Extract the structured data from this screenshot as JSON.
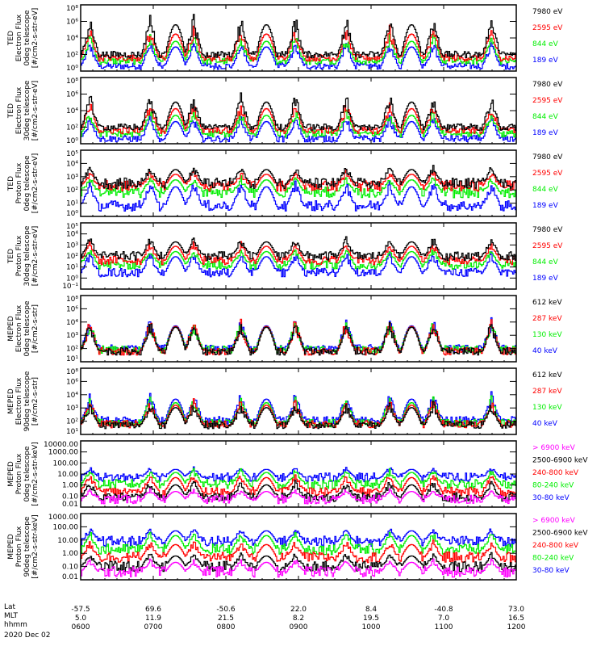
{
  "chart_data": [
    {
      "type": "line",
      "instrument": "TED",
      "ylabel": [
        "TED",
        "Electron Flux",
        "0deg telescope",
        "[#/cm2-s-str-eV]"
      ],
      "yscale": "log",
      "ylim": [
        1,
        100000000
      ],
      "yticks": [
        "10⁰",
        "10²",
        "10⁴",
        "10⁶",
        "10⁸"
      ],
      "legend": [
        {
          "label": "7980 eV",
          "color": "#000000"
        },
        {
          "label": "2595 eV",
          "color": "#ff0000"
        },
        {
          "label": "844 eV",
          "color": "#00ee00"
        },
        {
          "label": "189 eV",
          "color": "#0000ff"
        }
      ],
      "profile": {
        "base": [
          2,
          1.6,
          1.2,
          0.6
        ],
        "peak": [
          6.5,
          5.2,
          4.2,
          3.5
        ]
      }
    },
    {
      "type": "line",
      "instrument": "TED",
      "ylabel": [
        "TED",
        "Electron Flux",
        "30deg telescope",
        "[#/cm2-s-str-eV]"
      ],
      "yscale": "log",
      "ylim": [
        1,
        100000000
      ],
      "yticks": [
        "10⁰",
        "10²",
        "10⁴",
        "10⁶",
        "10⁸"
      ],
      "legend": [
        {
          "label": "7980 eV",
          "color": "#000000"
        },
        {
          "label": "2595 eV",
          "color": "#ff0000"
        },
        {
          "label": "844 eV",
          "color": "#00ee00"
        },
        {
          "label": "189 eV",
          "color": "#0000ff"
        }
      ],
      "profile": {
        "base": [
          2,
          1.6,
          1.2,
          0.6
        ],
        "peak": [
          5.8,
          4.9,
          4.0,
          3.2
        ]
      }
    },
    {
      "type": "line",
      "instrument": "TED",
      "ylabel": [
        "TED",
        "Proton Flux",
        "0deg telescope",
        "[#/cm2-s-str-eV]"
      ],
      "yscale": "log",
      "ylim": [
        1,
        100000
      ],
      "yticks": [
        "10⁰",
        "10¹",
        "10²",
        "10³",
        "10⁴",
        "10⁵"
      ],
      "legend": [
        {
          "label": "7980 eV",
          "color": "#000000"
        },
        {
          "label": "2595 eV",
          "color": "#ff0000"
        },
        {
          "label": "844 eV",
          "color": "#00ee00"
        },
        {
          "label": "189 eV",
          "color": "#0000ff"
        }
      ],
      "profile": {
        "base": [
          2.5,
          2.3,
          1.8,
          0.8
        ],
        "peak": [
          3.8,
          3.4,
          3.0,
          2.6
        ]
      }
    },
    {
      "type": "line",
      "instrument": "TED",
      "ylabel": [
        "TED",
        "Proton Flux",
        "30deg telescope",
        "[#/cm2-s-str-eV]"
      ],
      "yscale": "log",
      "ylim": [
        0.1,
        100000
      ],
      "yticks": [
        "10⁻¹",
        "10⁰",
        "10¹",
        "10²",
        "10³",
        "10⁴",
        "10⁵"
      ],
      "legend": [
        {
          "label": "7980 eV",
          "color": "#000000"
        },
        {
          "label": "2595 eV",
          "color": "#ff0000"
        },
        {
          "label": "844 eV",
          "color": "#00ee00"
        },
        {
          "label": "189 eV",
          "color": "#0000ff"
        }
      ],
      "profile": {
        "base": [
          2.0,
          1.6,
          1.2,
          0.5
        ],
        "peak": [
          3.6,
          3.2,
          2.7,
          2.3
        ]
      }
    },
    {
      "type": "line",
      "instrument": "MEPED",
      "ylabel": [
        "MEPED",
        "Electron Flux",
        "0deg telescope",
        "[#/cm2-s-str]"
      ],
      "yscale": "log",
      "ylim": [
        10,
        100000000
      ],
      "yticks": [
        "10¹",
        "10²",
        "10³",
        "10⁴",
        "10⁶",
        "10⁸"
      ],
      "legend": [
        {
          "label": "612 keV",
          "color": "#000000"
        },
        {
          "label": "287 keV",
          "color": "#ff0000"
        },
        {
          "label": "130 keV",
          "color": "#00ee00"
        },
        {
          "label": "40 keV",
          "color": "#0000ff"
        }
      ],
      "profile": {
        "base": [
          2.1,
          2.1,
          2.3,
          2.4
        ],
        "peak": [
          5.3,
          5.4,
          5.3,
          5.4
        ]
      }
    },
    {
      "type": "line",
      "instrument": "MEPED",
      "ylabel": [
        "MEPED",
        "Electron Flux",
        "90deg telescope",
        "[#/cm2-s-str]"
      ],
      "yscale": "log",
      "ylim": [
        10,
        100000000
      ],
      "yticks": [
        "10¹",
        "10²",
        "10³",
        "10⁴",
        "10⁶",
        "10⁸"
      ],
      "legend": [
        {
          "label": "612 keV",
          "color": "#000000"
        },
        {
          "label": "287 keV",
          "color": "#ff0000"
        },
        {
          "label": "130 keV",
          "color": "#00ee00"
        },
        {
          "label": "40 keV",
          "color": "#0000ff"
        }
      ],
      "profile": {
        "base": [
          2.0,
          2.1,
          2.2,
          2.5
        ],
        "peak": [
          4.3,
          4.6,
          4.9,
          5.3
        ]
      }
    },
    {
      "type": "line",
      "instrument": "MEPED",
      "ylabel": [
        "MEPED",
        "Proton Flux",
        "0deg telescope",
        "[#/cm2-s-str-keV]"
      ],
      "yscale": "log",
      "ylim": [
        0.01,
        10000
      ],
      "yticks": [
        "0.01",
        "0.10",
        "1.00",
        "10.00",
        "100.00",
        "1000.00",
        "10000.00"
      ],
      "legend": [
        {
          "label": "> 6900 keV",
          "color": "#ff00ff"
        },
        {
          "label": "2500-6900 keV",
          "color": "#000000"
        },
        {
          "label": "240-800 keV",
          "color": "#ff0000"
        },
        {
          "label": "80-240 keV",
          "color": "#00ee00"
        },
        {
          "label": "30-80 keV",
          "color": "#0000ff"
        }
      ],
      "profile": {
        "base": [
          -1.3,
          -1.1,
          -0.6,
          0.1,
          0.7
        ],
        "peak": [
          -0.4,
          0.3,
          1.0,
          1.4,
          1.6
        ]
      }
    },
    {
      "type": "line",
      "instrument": "MEPED",
      "ylabel": [
        "MEPED",
        "Proton Flux",
        "90deg telescope",
        "[#/cm2-s-str-keV]"
      ],
      "yscale": "log",
      "ylim": [
        0.01,
        1000
      ],
      "yticks": [
        "0.01",
        "0.10",
        "1.00",
        "10.00",
        "100.00",
        "1000.00"
      ],
      "legend": [
        {
          "label": "> 6900 keV",
          "color": "#ff00ff"
        },
        {
          "label": "2500-6900 keV",
          "color": "#000000"
        },
        {
          "label": "240-800 keV",
          "color": "#ff0000"
        },
        {
          "label": "80-240 keV",
          "color": "#00ee00"
        },
        {
          "label": "30-80 keV",
          "color": "#0000ff"
        }
      ],
      "profile": {
        "base": [
          -1.4,
          -1.0,
          -0.3,
          0.3,
          0.9
        ],
        "peak": [
          -0.5,
          0.0,
          0.9,
          1.6,
          1.9
        ]
      }
    }
  ],
  "x_axis": {
    "row_labels": [
      "Lat",
      "MLT",
      "hhmm"
    ],
    "ticks": [
      {
        "lat": "-57.5",
        "mlt": "5.0",
        "hhmm": "0600"
      },
      {
        "lat": "69.6",
        "mlt": "11.9",
        "hhmm": "0700"
      },
      {
        "lat": "-50.6",
        "mlt": "21.5",
        "hhmm": "0800"
      },
      {
        "lat": "22.0",
        "mlt": "8.2",
        "hhmm": "0900"
      },
      {
        "lat": "8.4",
        "mlt": "19.5",
        "hhmm": "1000"
      },
      {
        "lat": "-40.8",
        "mlt": "7.0",
        "hhmm": "1100"
      },
      {
        "lat": "73.0",
        "mlt": "16.5",
        "hhmm": "1200"
      }
    ],
    "date": "2020 Dec 02"
  },
  "time_range": {
    "start_hour": 6,
    "end_hour": 12
  },
  "passes": {
    "auroral_hours": [
      6.12,
      6.95,
      7.55,
      8.2,
      8.95,
      9.65,
      10.25,
      10.85,
      11.65
    ],
    "radiation_belt_hours": [
      7.3,
      8.55,
      10.55
    ]
  }
}
